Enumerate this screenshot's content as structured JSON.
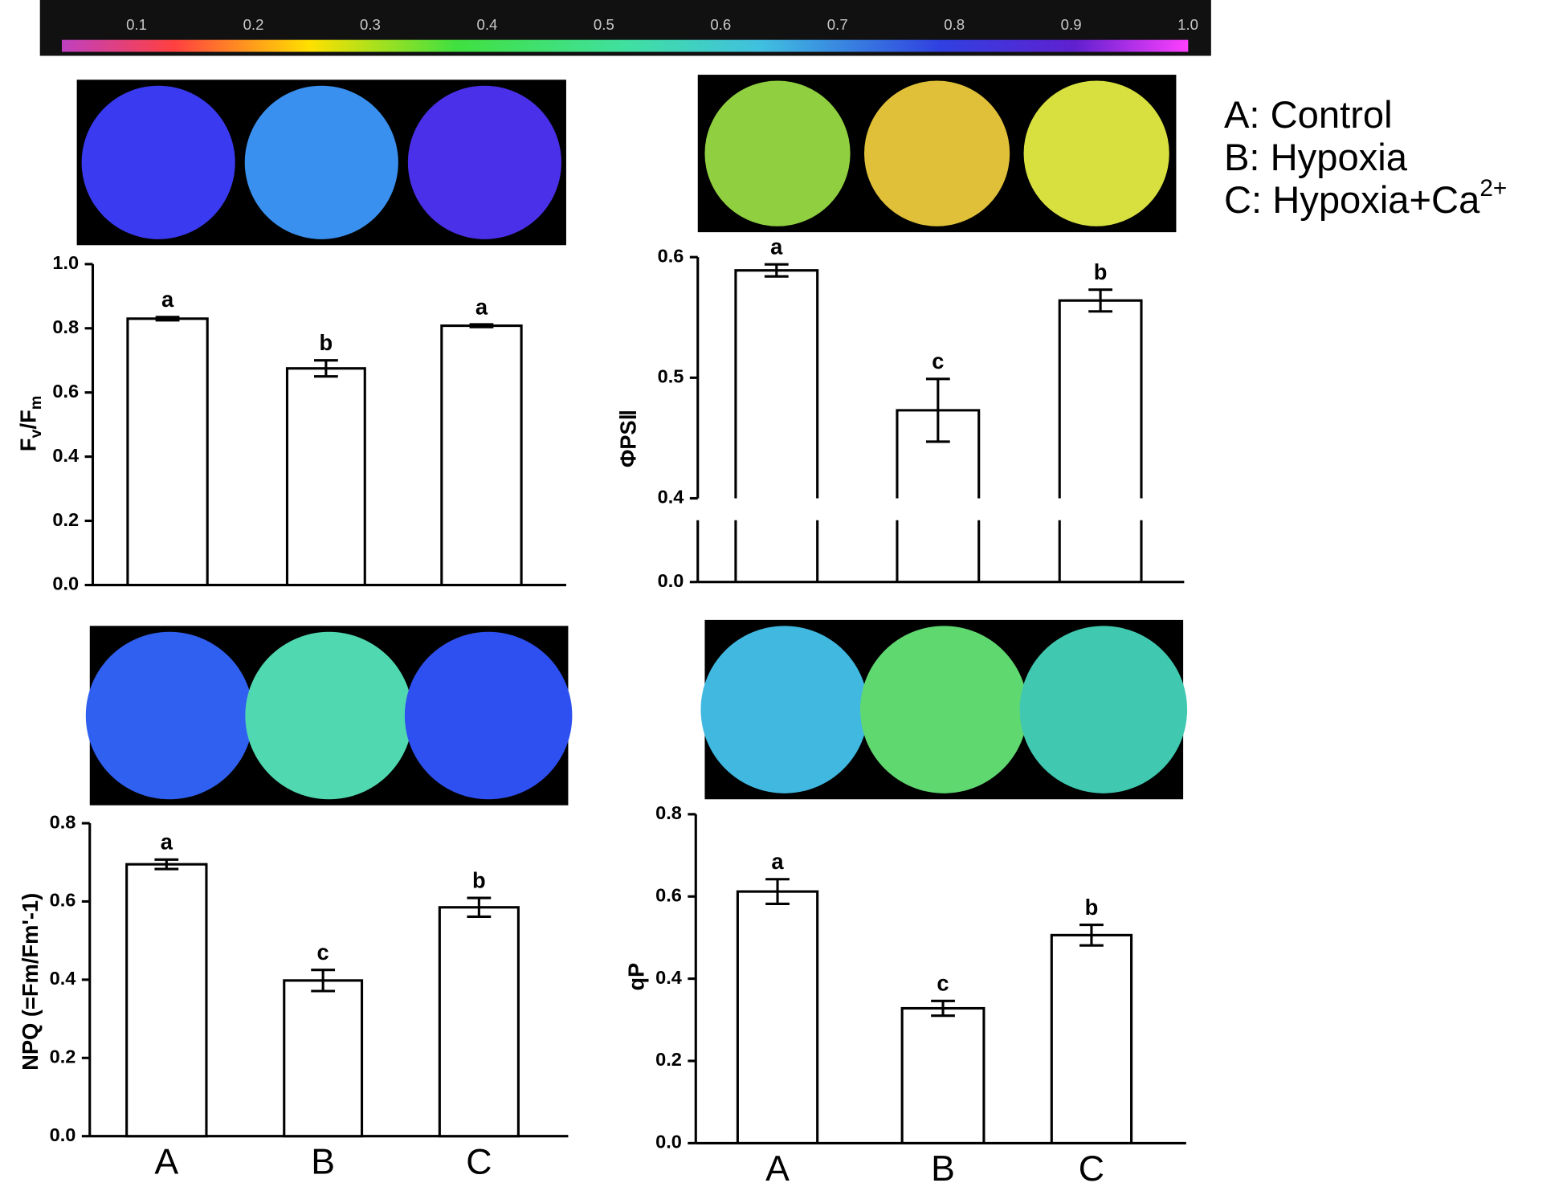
{
  "colorbar": {
    "ticks": [
      0.1,
      0.2,
      0.3,
      0.4,
      0.5,
      0.6,
      0.7,
      0.8,
      0.9,
      {
        "value": 1.0,
        "label": "1.0"
      }
    ]
  },
  "legend": [
    "A: Control",
    "B: Hypoxia",
    {
      "text": "C: Hypoxia+Ca",
      "sup": "2+"
    }
  ],
  "chart_data": [
    {
      "type": "bar",
      "ylabel": {
        "parts": [
          "F",
          "v",
          "/F",
          "m"
        ],
        "subscript": [
          false,
          true,
          false,
          true
        ]
      },
      "categories": [
        null,
        null,
        null
      ],
      "values": [
        0.83,
        0.675,
        0.808
      ],
      "errors": [
        0.005,
        0.025,
        0.004
      ],
      "labels": [
        "a",
        "b",
        "a"
      ],
      "color": "#ffffff",
      "ylim": [
        0,
        1.0
      ],
      "yticks": [
        {
          "value": 0,
          "label": "0.0"
        },
        0.2,
        0.4,
        0.6,
        0.8,
        {
          "value": 1.0,
          "label": "1.0"
        }
      ]
    },
    {
      "type": "bar",
      "ylabel": {
        "parts": [
          "ΦPSⅡ"
        ],
        "subscript": [
          false
        ]
      },
      "categories": [
        null,
        null,
        null
      ],
      "values": [
        0.589,
        0.473,
        0.564
      ],
      "errors": [
        0.005,
        0.026,
        0.009
      ],
      "labels": [
        "a",
        "c",
        "b"
      ],
      "color": "#ffffff",
      "ylim": [
        0,
        0.6
      ],
      "axis_break": [
        0,
        0.4
      ],
      "yticks": [
        {
          "value": 0,
          "label": "0.0"
        },
        0.4,
        0.5,
        0.6
      ]
    },
    {
      "type": "bar",
      "ylabel": {
        "parts": [
          "NPQ (=Fm/Fm'-1)"
        ],
        "subscript": [
          false
        ]
      },
      "categories": [
        "A",
        "B",
        "C"
      ],
      "values": [
        0.695,
        0.398,
        0.585
      ],
      "errors": [
        0.012,
        0.027,
        0.024
      ],
      "labels": [
        "a",
        "c",
        "b"
      ],
      "color": "#ffffff",
      "ylim": [
        0,
        0.8
      ],
      "yticks": [
        {
          "value": 0,
          "label": "0.0"
        },
        0.2,
        0.4,
        0.6,
        0.8
      ]
    },
    {
      "type": "bar",
      "ylabel": {
        "parts": [
          "qP"
        ],
        "subscript": [
          false
        ]
      },
      "categories": [
        "A",
        "B",
        "C"
      ],
      "values": [
        0.612,
        0.328,
        0.506
      ],
      "errors": [
        0.03,
        0.018,
        0.025
      ],
      "labels": [
        "a",
        "c",
        "b"
      ],
      "color": "#ffffff",
      "ylim": [
        0,
        0.8
      ],
      "yticks": [
        {
          "value": 0,
          "label": "0.0"
        },
        0.2,
        0.4,
        0.6,
        0.8
      ]
    }
  ]
}
